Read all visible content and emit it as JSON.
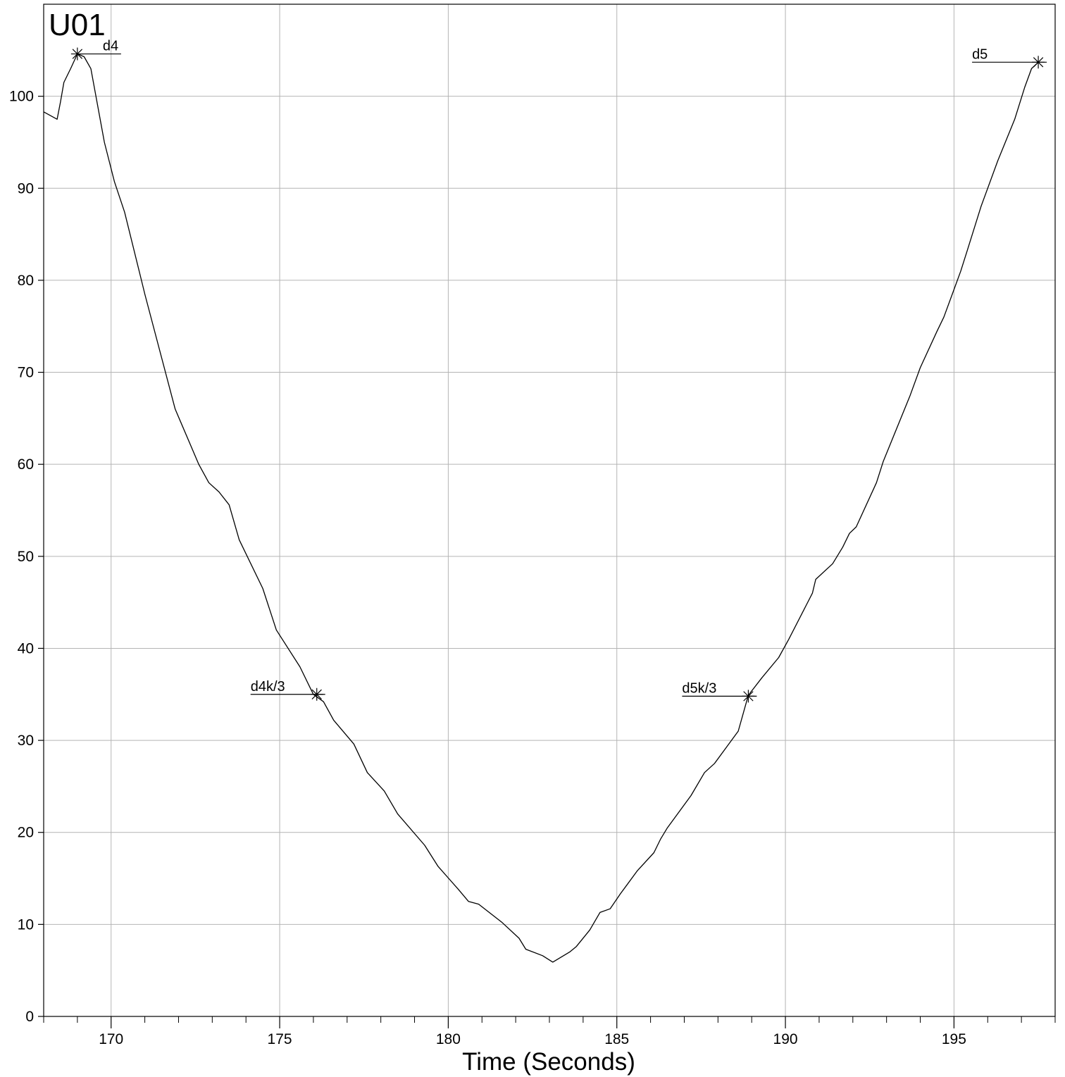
{
  "chart_data": {
    "type": "line",
    "title": "U01",
    "xlabel": "Time (Seconds)",
    "ylabel": "",
    "xlim": [
      168,
      198
    ],
    "ylim": [
      0,
      110
    ],
    "x_ticks": [
      170,
      175,
      180,
      185,
      190,
      195
    ],
    "y_ticks": [
      0,
      10,
      20,
      30,
      40,
      50,
      60,
      70,
      80,
      90,
      100
    ],
    "grid": true,
    "legend": "none",
    "line_color": "#000000",
    "grid_color": "#b4b4b4",
    "series": [
      {
        "x": [
          168.0,
          168.4,
          168.5,
          168.6,
          168.8,
          169.0,
          169.2,
          169.4,
          169.8,
          170.1,
          170.4,
          170.9,
          171.0,
          171.9,
          172.6,
          172.9,
          173.2,
          173.5,
          173.8,
          174.5,
          174.9,
          175.6,
          176.0,
          176.3,
          176.6,
          177.2,
          177.6,
          178.1,
          178.5,
          179.3,
          179.7,
          180.3,
          180.6,
          180.9,
          181.6,
          182.1,
          182.3,
          182.8,
          183.1,
          183.6,
          183.8,
          184.2,
          184.5,
          184.8,
          185.1,
          185.6,
          186.1,
          186.3,
          186.5,
          187.2,
          187.6,
          187.9,
          188.3,
          188.6,
          188.9,
          189.3,
          189.8,
          190.1,
          190.8,
          190.9,
          191.4,
          191.7,
          191.9,
          192.1,
          192.7,
          192.9,
          193.7,
          194.0,
          194.5,
          194.7,
          195.0,
          195.2,
          195.4,
          195.8,
          196.3,
          196.8,
          197.1,
          197.3,
          197.5
        ],
        "y": [
          98.3,
          97.5,
          99.4,
          101.5,
          103.0,
          104.6,
          104.3,
          103.0,
          95.0,
          90.7,
          87.4,
          80.0,
          78.5,
          66.0,
          60.0,
          58.0,
          57.0,
          55.6,
          51.8,
          46.5,
          42.0,
          38.0,
          35.0,
          34.2,
          32.2,
          29.6,
          26.5,
          24.5,
          22.0,
          18.6,
          16.3,
          13.8,
          12.5,
          12.2,
          10.2,
          8.5,
          7.3,
          6.6,
          5.9,
          7.0,
          7.6,
          9.4,
          11.3,
          11.7,
          13.3,
          15.8,
          17.8,
          19.3,
          20.5,
          24.0,
          26.5,
          27.5,
          29.5,
          31.0,
          34.9,
          36.8,
          39.0,
          41.0,
          46.0,
          47.5,
          49.2,
          51.0,
          52.5,
          53.2,
          58.0,
          60.3,
          67.5,
          70.5,
          74.5,
          76.0,
          79.0,
          81.0,
          83.3,
          88.0,
          93.0,
          97.5,
          101.0,
          103.0,
          103.7
        ]
      }
    ],
    "annotations": [
      {
        "label": "d4",
        "x": 169.0,
        "y": 104.6
      },
      {
        "label": "d4k/3",
        "x": 176.1,
        "y": 35.0
      },
      {
        "label": "d5k/3",
        "x": 188.9,
        "y": 34.8
      },
      {
        "label": "d5",
        "x": 197.5,
        "y": 103.7
      }
    ]
  }
}
